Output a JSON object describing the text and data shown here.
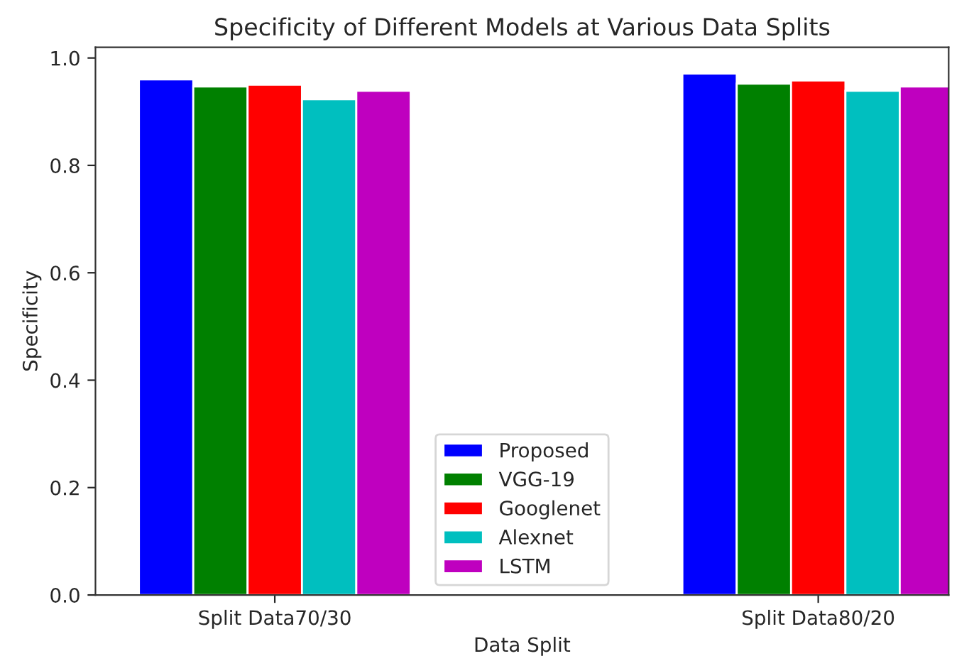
{
  "chart_data": {
    "type": "bar",
    "title": "Specificity of Different Models at Various Data Splits",
    "xlabel": "Data Split",
    "ylabel": "Specificity",
    "categories": [
      "Split Data70/30",
      "Split Data80/20"
    ],
    "series": [
      {
        "name": "Proposed",
        "color": "#0000ff",
        "values": [
          0.96,
          0.971
        ]
      },
      {
        "name": "VGG-19",
        "color": "#008000",
        "values": [
          0.947,
          0.952
        ]
      },
      {
        "name": "Googlenet",
        "color": "#ff0000",
        "values": [
          0.95,
          0.958
        ]
      },
      {
        "name": "Alexnet",
        "color": "#00bfbf",
        "values": [
          0.923,
          0.939
        ]
      },
      {
        "name": "LSTM",
        "color": "#bf00bf",
        "values": [
          0.939,
          0.947
        ]
      }
    ],
    "ylim": [
      0,
      1.02
    ],
    "yticks": [
      {
        "value": 0,
        "label": "0.0"
      },
      {
        "value": 0.2,
        "label": "0.2"
      },
      {
        "value": 0.4,
        "label": "0.4"
      },
      {
        "value": 0.6,
        "label": "0.6"
      },
      {
        "value": 0.8,
        "label": "0.8"
      },
      {
        "value": 1.0,
        "label": "1.0"
      }
    ],
    "legend": "bottom",
    "grid": false
  }
}
